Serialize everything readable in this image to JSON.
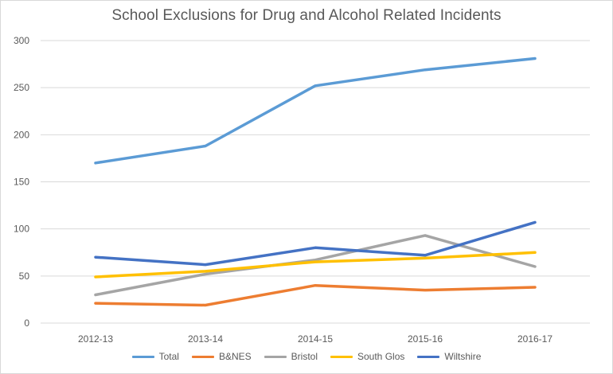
{
  "chart_data": {
    "type": "line",
    "title": "School Exclusions for Drug and Alcohol Related Incidents",
    "xlabel": "",
    "ylabel": "",
    "categories": [
      "2012-13",
      "2013-14",
      "2014-15",
      "2015-16",
      "2016-17"
    ],
    "ylim": [
      0,
      300
    ],
    "yticks": [
      "0",
      "50",
      "100",
      "150",
      "200",
      "250",
      "300"
    ],
    "grid": true,
    "legend_position": "bottom",
    "series": [
      {
        "name": "Total",
        "color": "#5B9BD5",
        "values": [
          170,
          188,
          252,
          269,
          281
        ]
      },
      {
        "name": "B&NES",
        "color": "#ED7D31",
        "values": [
          21,
          19,
          40,
          35,
          38
        ]
      },
      {
        "name": "Bristol",
        "color": "#A5A5A5",
        "values": [
          30,
          52,
          67,
          93,
          60
        ]
      },
      {
        "name": "South Glos",
        "color": "#FFC000",
        "values": [
          49,
          55,
          65,
          69,
          75
        ]
      },
      {
        "name": "Wiltshire",
        "color": "#4472C4",
        "values": [
          70,
          62,
          80,
          72,
          107
        ]
      }
    ]
  }
}
